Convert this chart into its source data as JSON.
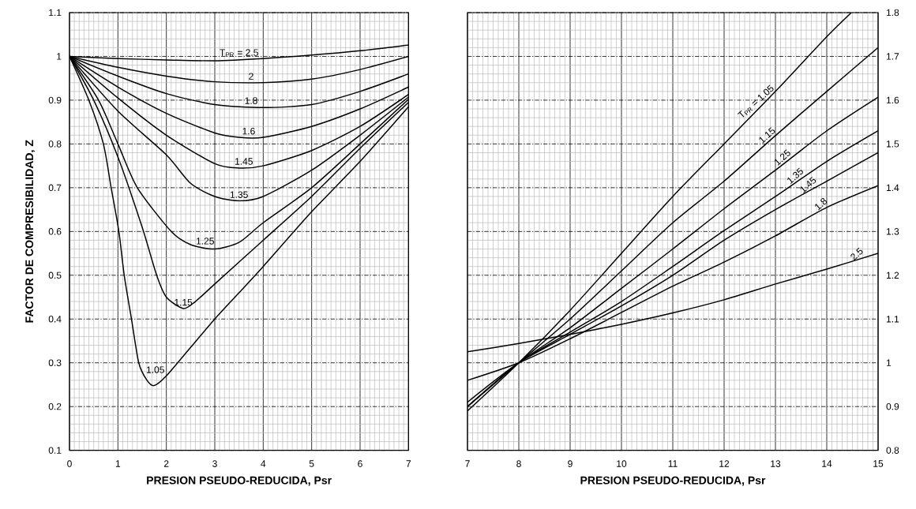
{
  "chart_data": [
    {
      "type": "line",
      "xlabel": "PRESION PSEUDO-REDUCIDA, Psr",
      "ylabel": "FACTOR DE COMPRESIBILIDAD, Z",
      "xlim": [
        0,
        7
      ],
      "xticks": [
        0,
        1,
        2,
        3,
        4,
        5,
        6,
        7
      ],
      "ylim": [
        0.1,
        1.1
      ],
      "yticks": [
        0.1,
        0.2,
        0.3,
        0.4,
        0.5,
        0.6,
        0.7,
        0.8,
        0.9,
        1,
        1.1
      ],
      "grid": true,
      "legend": false,
      "marker": "none",
      "line_style": "solid",
      "series": [
        {
          "name": "1.05",
          "color": "#000000",
          "x": [
            0,
            0.4,
            0.7,
            0.86,
            1.02,
            1.13,
            1.28,
            1.43,
            1.6,
            1.75,
            2,
            2.5,
            3,
            3.5,
            4,
            5,
            6,
            7
          ],
          "values": [
            1,
            0.9,
            0.8,
            0.7,
            0.6,
            0.5,
            0.4,
            0.3,
            0.26,
            0.248,
            0.27,
            0.335,
            0.4,
            0.46,
            0.52,
            0.645,
            0.76,
            0.885
          ]
        },
        {
          "name": "1.15",
          "color": "#000000",
          "x": [
            0,
            0.5,
            1,
            1.5,
            1.8,
            2,
            2.35,
            2.6,
            3,
            4,
            5,
            6,
            7
          ],
          "values": [
            1,
            0.9,
            0.77,
            0.61,
            0.5,
            0.45,
            0.424,
            0.44,
            0.48,
            0.58,
            0.68,
            0.79,
            0.895
          ]
        },
        {
          "name": "1.25",
          "color": "#000000",
          "x": [
            0,
            0.6,
            1,
            1.4,
            2.1,
            2.5,
            3,
            3.5,
            4,
            5,
            6,
            7
          ],
          "values": [
            1,
            0.9,
            0.8,
            0.7,
            0.6,
            0.57,
            0.56,
            0.575,
            0.62,
            0.7,
            0.8,
            0.902
          ]
        },
        {
          "name": "1.35",
          "color": "#000000",
          "x": [
            0,
            1,
            2,
            2.5,
            3,
            3.5,
            4,
            5,
            6,
            7
          ],
          "values": [
            1,
            0.875,
            0.775,
            0.71,
            0.68,
            0.67,
            0.68,
            0.74,
            0.82,
            0.907
          ]
        },
        {
          "name": "1.45",
          "color": "#000000",
          "x": [
            0,
            1,
            2,
            3,
            3.5,
            4,
            5,
            6,
            7
          ],
          "values": [
            1,
            0.905,
            0.82,
            0.755,
            0.745,
            0.75,
            0.785,
            0.84,
            0.913
          ]
        },
        {
          "name": "1.6",
          "color": "#000000",
          "x": [
            0,
            1,
            2,
            3,
            3.5,
            4,
            5,
            6,
            7
          ],
          "values": [
            1,
            0.93,
            0.87,
            0.825,
            0.815,
            0.815,
            0.84,
            0.88,
            0.93
          ]
        },
        {
          "name": "1.8",
          "color": "#000000",
          "x": [
            0,
            1,
            2,
            3,
            4,
            5,
            6,
            7
          ],
          "values": [
            1,
            0.955,
            0.915,
            0.89,
            0.883,
            0.89,
            0.92,
            0.96
          ]
        },
        {
          "name": "2",
          "color": "#000000",
          "x": [
            0,
            1,
            2,
            3,
            4,
            5,
            6,
            7
          ],
          "values": [
            1,
            0.975,
            0.955,
            0.942,
            0.94,
            0.948,
            0.97,
            1.0
          ]
        },
        {
          "name": "T$_{PR}$ = 2.5",
          "color": "#000000",
          "x": [
            0,
            1,
            2,
            3,
            4,
            5,
            6,
            7
          ],
          "values": [
            1,
            0.995,
            0.992,
            0.99,
            0.995,
            1.003,
            1.013,
            1.026
          ]
        }
      ]
    },
    {
      "type": "line",
      "xlabel": "PRESION PSEUDO-REDUCIDA, Psr",
      "xlim": [
        7,
        15
      ],
      "xticks": [
        7,
        8,
        9,
        10,
        11,
        12,
        13,
        14,
        15
      ],
      "y2lim": [
        0.8,
        1.8
      ],
      "y2ticks": [
        0.8,
        0.9,
        1,
        1.1,
        1.2,
        1.3,
        1.4,
        1.5,
        1.6,
        1.7,
        1.8
      ],
      "grid": true,
      "legend": false,
      "marker": "none",
      "line_style": "solid",
      "series": [
        {
          "name": "T$_{PR}$ = 1.05",
          "axis": "y2",
          "color": "#000000",
          "x": [
            7,
            8,
            9,
            10,
            11,
            12,
            13,
            14,
            14.48
          ],
          "values": [
            0.89,
            1.0,
            1.12,
            1.25,
            1.38,
            1.5,
            1.62,
            1.745,
            1.8
          ]
        },
        {
          "name": "1.15",
          "axis": "y2",
          "color": "#000000",
          "x": [
            7,
            8,
            9,
            10,
            11,
            12,
            13,
            14,
            15
          ],
          "values": [
            0.9,
            1.0,
            1.1,
            1.21,
            1.32,
            1.415,
            1.519,
            1.62,
            1.72
          ]
        },
        {
          "name": "1.25",
          "axis": "y2",
          "color": "#000000",
          "x": [
            7,
            8,
            9,
            10,
            11,
            12,
            13,
            14,
            15
          ],
          "values": [
            0.9,
            1.0,
            1.08,
            1.17,
            1.26,
            1.352,
            1.44,
            1.53,
            1.607
          ]
        },
        {
          "name": "1.35",
          "axis": "y2",
          "color": "#000000",
          "x": [
            7,
            8,
            9,
            10,
            11,
            12,
            13,
            14,
            15
          ],
          "values": [
            0.9,
            1.0,
            1.07,
            1.14,
            1.22,
            1.302,
            1.38,
            1.46,
            1.53
          ]
        },
        {
          "name": "1.45",
          "axis": "y2",
          "color": "#000000",
          "x": [
            7,
            8,
            9,
            10,
            11,
            12,
            13,
            14,
            15
          ],
          "values": [
            0.91,
            1.0,
            1.065,
            1.13,
            1.2,
            1.28,
            1.35,
            1.415,
            1.48
          ]
        },
        {
          "name": "1.8",
          "axis": "y2",
          "color": "#000000",
          "x": [
            7,
            8,
            9,
            10,
            11,
            12,
            13,
            14,
            15
          ],
          "values": [
            0.96,
            1.0,
            1.055,
            1.115,
            1.175,
            1.23,
            1.29,
            1.355,
            1.405
          ]
        },
        {
          "name": "2.5",
          "axis": "y2",
          "color": "#000000",
          "x": [
            7,
            8,
            9,
            10,
            11,
            12,
            13,
            14,
            15
          ],
          "values": [
            1.025,
            1.044,
            1.065,
            1.088,
            1.114,
            1.144,
            1.18,
            1.214,
            1.25
          ]
        }
      ]
    }
  ]
}
